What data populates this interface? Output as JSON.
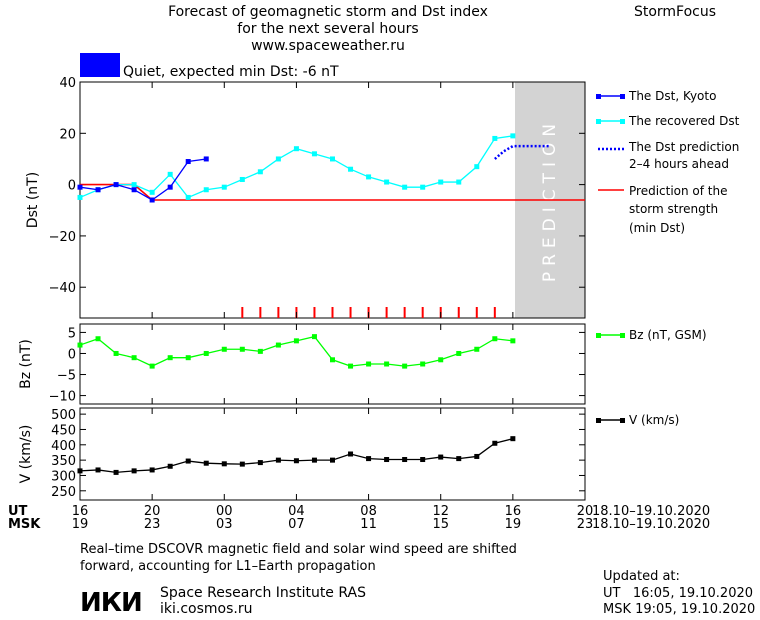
{
  "header": {
    "title_line1": "Forecast of geomagnetic storm and Dst index",
    "title_line2": "for the next several hours",
    "title_line3": "www.spaceweather.ru",
    "brand": "StormFocus",
    "status_text": "Quiet, expected min Dst: -6 nT",
    "status_color": "#0000ff"
  },
  "prediction_label": "PREDICTION",
  "colors": {
    "dst_kyoto": "#0000ff",
    "recovered": "#00ffff",
    "prediction": "#0000ff",
    "storm": "#ff0000",
    "bz": "#00ff00",
    "v": "#000000",
    "pred_zone": "#d3d3d3"
  },
  "chart_data": [
    {
      "type": "line",
      "ylabel": "Dst (nT)",
      "ylim": [
        -52,
        40
      ],
      "yticks": [
        40,
        20,
        0,
        -20,
        -40
      ],
      "x_range_hours": [
        0,
        28
      ],
      "series": [
        {
          "name": "The Dst, Kyoto",
          "x": [
            0,
            1,
            2,
            3,
            4,
            5,
            6,
            7
          ],
          "values": [
            -1,
            -2,
            0,
            -2,
            -6,
            -1,
            9,
            10
          ]
        },
        {
          "name": "The recovered Dst",
          "x": [
            0,
            1,
            2,
            3,
            4,
            5,
            6,
            7,
            8,
            9,
            10,
            11,
            12,
            13,
            14,
            15,
            16,
            17,
            18,
            19,
            20,
            21,
            22,
            23,
            24
          ],
          "values": [
            -5,
            -2,
            0,
            0,
            -3,
            4,
            -5,
            -2,
            -1,
            2,
            5,
            10,
            14,
            12,
            10,
            6,
            3,
            1,
            -1,
            -1,
            1,
            1,
            7,
            18,
            19
          ]
        },
        {
          "name": "The Dst prediction 2-4 hours ahead",
          "x": [
            23,
            23.5,
            24,
            25,
            26
          ],
          "values": [
            10,
            13,
            15,
            15,
            15
          ]
        },
        {
          "name": "Prediction of the storm strength (min Dst)",
          "x": [
            0,
            3,
            4,
            28
          ],
          "values": [
            0,
            0,
            -6,
            -6
          ]
        }
      ],
      "red_ticks_x": [
        9,
        10,
        11,
        12,
        13,
        14,
        15,
        16,
        17,
        18,
        19,
        20,
        21,
        22,
        23
      ],
      "prediction_zone_x": [
        23.5,
        28
      ]
    },
    {
      "type": "line",
      "ylabel": "Bz (nT)",
      "ylim": [
        -12,
        7
      ],
      "yticks": [
        5,
        0,
        -5,
        -10
      ],
      "series": [
        {
          "name": "Bz (nT, GSM)",
          "x": [
            0,
            1,
            2,
            3,
            4,
            5,
            6,
            7,
            8,
            9,
            10,
            11,
            12,
            13,
            14,
            15,
            16,
            17,
            18,
            19,
            20,
            21,
            22,
            23,
            24
          ],
          "values": [
            2,
            3.5,
            0,
            -1,
            -3,
            -1,
            -1,
            0,
            1,
            1,
            0.5,
            2,
            3,
            4,
            -1.5,
            -3,
            -2.5,
            -2.5,
            -3,
            -2.5,
            -1.5,
            0,
            1,
            3.5,
            3
          ]
        }
      ]
    },
    {
      "type": "line",
      "ylabel": "V (km/s)",
      "ylim": [
        220,
        520
      ],
      "yticks": [
        500,
        450,
        400,
        350,
        300,
        250
      ],
      "series": [
        {
          "name": "V (km/s)",
          "x": [
            0,
            1,
            2,
            3,
            4,
            5,
            6,
            7,
            8,
            9,
            10,
            11,
            12,
            13,
            14,
            15,
            16,
            17,
            18,
            19,
            20,
            21,
            22,
            23,
            24
          ],
          "values": [
            315,
            318,
            310,
            315,
            318,
            330,
            347,
            340,
            338,
            337,
            342,
            350,
            348,
            350,
            350,
            370,
            355,
            352,
            352,
            352,
            360,
            355,
            362,
            405,
            420
          ]
        }
      ]
    }
  ],
  "x_axis": {
    "ut_label": "UT",
    "msk_label": "MSK",
    "ut_ticks": [
      "16",
      "20",
      "00",
      "04",
      "08",
      "12",
      "16",
      "20"
    ],
    "msk_ticks": [
      "19",
      "23",
      "03",
      "07",
      "11",
      "15",
      "19",
      "23"
    ],
    "tick_hours": [
      0,
      4,
      8,
      12,
      16,
      20,
      24,
      28
    ],
    "date_range_ut": "18.10–19.10.2020",
    "date_range_msk": "18.10–19.10.2020"
  },
  "legend": {
    "dst_kyoto": "The Dst, Kyoto",
    "recovered": "The recovered Dst",
    "prediction_l1": "The Dst prediction",
    "prediction_l2": "2–4 hours ahead",
    "storm_l1": "Prediction of the",
    "storm_l2": "storm strength",
    "storm_l3": "(min Dst)",
    "bz": "Bz (nT, GSM)",
    "v": "V (km/s)"
  },
  "footer": {
    "note_l1": "Real–time DSCOVR magnetic field and solar wind speed are shifted",
    "note_l2": "forward, accounting for L1–Earth propagation",
    "logo": "ИКИ",
    "institute": "Space Research Institute RAS",
    "site": "iki.cosmos.ru",
    "updated_label": "Updated at:",
    "updated_ut": "UT   16:05, 19.10.2020",
    "updated_msk": "MSK 19:05, 19.10.2020"
  }
}
